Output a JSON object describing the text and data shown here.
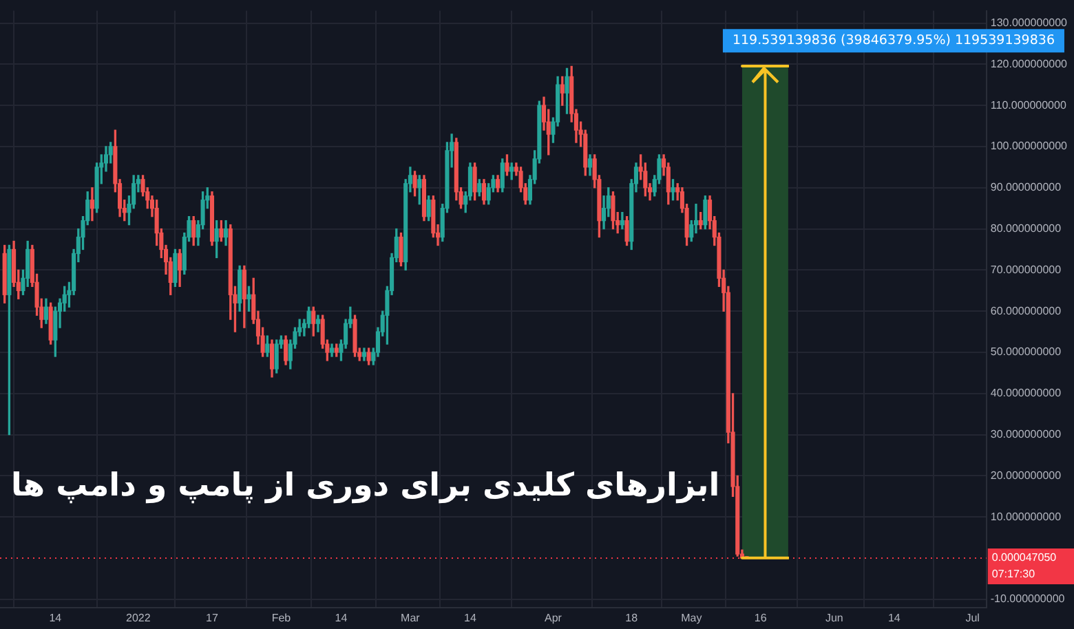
{
  "chart_data": {
    "type": "candlestick",
    "title": "ابزارهای کلیدی برای دوری از پامپ و دامپ ها",
    "x": [
      "2021-12-03",
      "2021-12-04",
      "2021-12-05",
      "2021-12-06",
      "2021-12-07",
      "2021-12-08",
      "2021-12-09",
      "2021-12-10",
      "2021-12-11",
      "2021-12-12",
      "2021-12-13",
      "2021-12-14",
      "2021-12-15",
      "2021-12-16",
      "2021-12-17",
      "2021-12-18",
      "2021-12-19",
      "2021-12-20",
      "2021-12-21",
      "2021-12-22",
      "2021-12-23",
      "2021-12-24",
      "2021-12-25",
      "2021-12-26",
      "2021-12-27",
      "2021-12-28",
      "2021-12-29",
      "2021-12-30",
      "2021-12-31",
      "2022-01-01",
      "2022-01-02",
      "2022-01-03",
      "2022-01-04",
      "2022-01-05",
      "2022-01-06",
      "2022-01-07",
      "2022-01-08",
      "2022-01-09",
      "2022-01-10",
      "2022-01-11",
      "2022-01-12",
      "2022-01-13",
      "2022-01-14",
      "2022-01-15",
      "2022-01-16",
      "2022-01-17",
      "2022-01-18",
      "2022-01-19",
      "2022-01-20",
      "2022-01-21",
      "2022-01-22",
      "2022-01-23",
      "2022-01-24",
      "2022-01-25",
      "2022-01-26",
      "2022-01-27",
      "2022-01-28",
      "2022-01-29",
      "2022-01-30",
      "2022-01-31",
      "2022-02-01",
      "2022-02-02",
      "2022-02-03",
      "2022-02-04",
      "2022-02-05",
      "2022-02-06",
      "2022-02-07",
      "2022-02-08",
      "2022-02-09",
      "2022-02-10",
      "2022-02-11",
      "2022-02-12",
      "2022-02-13",
      "2022-02-14",
      "2022-02-15",
      "2022-02-16",
      "2022-02-17",
      "2022-02-18",
      "2022-02-19",
      "2022-02-20",
      "2022-02-21",
      "2022-02-22",
      "2022-02-23",
      "2022-02-24",
      "2022-02-25",
      "2022-02-26",
      "2022-02-27",
      "2022-02-28",
      "2022-03-01",
      "2022-03-02",
      "2022-03-03",
      "2022-03-04",
      "2022-03-05",
      "2022-03-06",
      "2022-03-07",
      "2022-03-08",
      "2022-03-09",
      "2022-03-10",
      "2022-03-11",
      "2022-03-12",
      "2022-03-13",
      "2022-03-14",
      "2022-03-15",
      "2022-03-16",
      "2022-03-17",
      "2022-03-18",
      "2022-03-19",
      "2022-03-20",
      "2022-03-21",
      "2022-03-22",
      "2022-03-23",
      "2022-03-24",
      "2022-03-25",
      "2022-03-26",
      "2022-03-27",
      "2022-03-28",
      "2022-03-29",
      "2022-03-30",
      "2022-03-31",
      "2022-04-01",
      "2022-04-02",
      "2022-04-03",
      "2022-04-04",
      "2022-04-05",
      "2022-04-06",
      "2022-04-07",
      "2022-04-08",
      "2022-04-09",
      "2022-04-10",
      "2022-04-11",
      "2022-04-12",
      "2022-04-13",
      "2022-04-14",
      "2022-04-15",
      "2022-04-16",
      "2022-04-17",
      "2022-04-18",
      "2022-04-19",
      "2022-04-20",
      "2022-04-21",
      "2022-04-22",
      "2022-04-23",
      "2022-04-24",
      "2022-04-25",
      "2022-04-26",
      "2022-04-27",
      "2022-04-28",
      "2022-04-29",
      "2022-04-30",
      "2022-05-01",
      "2022-05-02",
      "2022-05-03",
      "2022-05-04",
      "2022-05-05",
      "2022-05-06",
      "2022-05-07",
      "2022-05-08",
      "2022-05-09",
      "2022-05-10",
      "2022-05-11",
      "2022-05-12",
      "2022-05-13"
    ],
    "ohlc": [
      [
        74,
        76,
        62,
        64
      ],
      [
        64,
        76,
        30,
        75
      ],
      [
        75,
        77,
        66,
        67
      ],
      [
        67,
        70,
        63,
        65
      ],
      [
        65,
        70,
        64,
        68
      ],
      [
        68,
        77,
        66,
        75
      ],
      [
        75,
        76,
        66,
        67
      ],
      [
        67,
        69,
        59,
        61
      ],
      [
        61,
        63,
        56,
        58
      ],
      [
        58,
        63,
        57,
        61
      ],
      [
        61,
        62,
        52,
        53
      ],
      [
        53,
        61,
        49,
        60
      ],
      [
        60,
        63,
        56,
        62
      ],
      [
        62,
        66,
        60,
        64
      ],
      [
        64,
        67,
        61,
        65
      ],
      [
        65,
        75,
        64,
        74
      ],
      [
        74,
        80,
        72,
        78
      ],
      [
        78,
        83,
        75,
        82
      ],
      [
        82,
        89,
        81,
        87
      ],
      [
        87,
        90,
        82,
        85
      ],
      [
        85,
        96,
        84,
        95
      ],
      [
        95,
        98,
        91,
        96
      ],
      [
        96,
        100,
        94,
        98
      ],
      [
        98,
        101,
        96,
        100
      ],
      [
        100,
        104,
        89,
        91
      ],
      [
        91,
        92,
        83,
        85
      ],
      [
        85,
        87,
        82,
        84
      ],
      [
        84,
        88,
        81,
        86
      ],
      [
        86,
        93,
        85,
        91
      ],
      [
        91,
        93,
        89,
        92
      ],
      [
        92,
        93,
        88,
        89
      ],
      [
        89,
        90,
        85,
        87
      ],
      [
        87,
        88,
        83,
        85
      ],
      [
        85,
        87,
        76,
        79
      ],
      [
        79,
        80,
        73,
        75
      ],
      [
        75,
        76,
        69,
        72
      ],
      [
        72,
        73,
        64,
        67
      ],
      [
        67,
        75,
        66,
        74
      ],
      [
        74,
        75,
        66,
        70
      ],
      [
        70,
        79,
        69,
        78
      ],
      [
        78,
        83,
        77,
        82
      ],
      [
        82,
        83,
        76,
        78
      ],
      [
        78,
        82,
        76,
        81
      ],
      [
        81,
        89,
        80,
        87
      ],
      [
        87,
        90,
        85,
        88
      ],
      [
        88,
        89,
        76,
        77
      ],
      [
        77,
        82,
        73,
        80
      ],
      [
        80,
        82,
        77,
        78
      ],
      [
        78,
        82,
        76,
        80
      ],
      [
        80,
        81,
        58,
        64
      ],
      [
        64,
        66,
        55,
        62
      ],
      [
        62,
        71,
        60,
        70
      ],
      [
        70,
        71,
        56,
        63
      ],
      [
        63,
        66,
        60,
        64
      ],
      [
        64,
        68,
        57,
        58
      ],
      [
        58,
        60,
        52,
        54
      ],
      [
        54,
        56,
        49,
        50
      ],
      [
        50,
        54,
        49,
        52
      ],
      [
        52,
        53,
        44,
        46
      ],
      [
        46,
        53,
        45,
        52
      ],
      [
        52,
        54,
        51,
        53
      ],
      [
        53,
        54,
        47,
        48
      ],
      [
        48,
        53,
        46,
        52
      ],
      [
        52,
        56,
        51,
        55
      ],
      [
        55,
        58,
        54,
        56
      ],
      [
        56,
        58,
        54,
        57
      ],
      [
        57,
        61,
        56,
        60
      ],
      [
        60,
        61,
        54,
        57
      ],
      [
        57,
        59,
        55,
        58
      ],
      [
        58,
        59,
        51,
        52
      ],
      [
        52,
        53,
        48,
        50
      ],
      [
        50,
        52,
        49,
        51
      ],
      [
        51,
        52,
        49,
        50
      ],
      [
        50,
        53,
        48,
        52
      ],
      [
        52,
        58,
        51,
        57
      ],
      [
        57,
        61,
        56,
        58
      ],
      [
        58,
        59,
        49,
        50
      ],
      [
        50,
        51,
        48,
        49
      ],
      [
        49,
        51,
        48,
        50
      ],
      [
        50,
        51,
        47,
        48
      ],
      [
        48,
        51,
        47,
        50
      ],
      [
        50,
        56,
        49,
        55
      ],
      [
        55,
        60,
        54,
        59
      ],
      [
        59,
        66,
        52,
        65
      ],
      [
        65,
        74,
        64,
        73
      ],
      [
        73,
        80,
        72,
        78
      ],
      [
        78,
        79,
        71,
        72
      ],
      [
        72,
        92,
        70,
        91
      ],
      [
        91,
        95,
        89,
        93
      ],
      [
        93,
        94,
        88,
        90
      ],
      [
        90,
        93,
        86,
        92
      ],
      [
        92,
        93,
        82,
        83
      ],
      [
        83,
        88,
        82,
        87
      ],
      [
        87,
        88,
        78,
        79
      ],
      [
        79,
        81,
        76,
        78
      ],
      [
        78,
        86,
        77,
        85
      ],
      [
        85,
        101,
        84,
        99
      ],
      [
        99,
        103,
        95,
        101
      ],
      [
        101,
        102,
        87,
        89
      ],
      [
        89,
        90,
        85,
        86
      ],
      [
        86,
        89,
        84,
        88
      ],
      [
        88,
        96,
        87,
        95
      ],
      [
        95,
        96,
        87,
        89
      ],
      [
        89,
        92,
        88,
        91
      ],
      [
        91,
        92,
        86,
        87
      ],
      [
        87,
        91,
        86,
        90
      ],
      [
        90,
        93,
        89,
        92
      ],
      [
        92,
        93,
        89,
        90
      ],
      [
        90,
        97,
        89,
        96
      ],
      [
        96,
        98,
        93,
        94
      ],
      [
        94,
        96,
        92,
        95
      ],
      [
        95,
        96,
        93,
        94
      ],
      [
        94,
        95,
        89,
        90
      ],
      [
        90,
        91,
        86,
        87
      ],
      [
        87,
        93,
        86,
        92
      ],
      [
        92,
        99,
        91,
        97
      ],
      [
        97,
        111,
        96,
        110
      ],
      [
        110,
        112,
        104,
        106
      ],
      [
        106,
        109,
        98,
        103
      ],
      [
        103,
        107,
        101,
        106
      ],
      [
        106,
        117,
        105,
        115
      ],
      [
        115,
        117,
        110,
        113
      ],
      [
        113,
        119,
        108,
        117
      ],
      [
        117,
        119.5,
        106,
        108
      ],
      [
        108,
        109,
        101,
        104
      ],
      [
        104,
        106,
        100,
        103
      ],
      [
        103,
        104,
        93,
        95
      ],
      [
        95,
        98,
        93,
        97
      ],
      [
        97,
        98,
        90,
        92
      ],
      [
        92,
        93,
        78,
        82
      ],
      [
        82,
        88,
        80,
        85
      ],
      [
        85,
        90,
        83,
        88
      ],
      [
        88,
        89,
        80,
        82
      ],
      [
        82,
        84,
        79,
        81
      ],
      [
        81,
        84,
        80,
        82
      ],
      [
        82,
        83,
        76,
        77
      ],
      [
        77,
        92,
        75,
        91
      ],
      [
        91,
        96,
        89,
        95
      ],
      [
        95,
        98,
        92,
        94
      ],
      [
        94,
        96,
        88,
        90
      ],
      [
        90,
        91,
        87,
        89
      ],
      [
        89,
        93,
        88,
        92
      ],
      [
        92,
        98,
        91,
        97
      ],
      [
        97,
        98,
        93,
        95
      ],
      [
        95,
        96,
        86,
        89
      ],
      [
        89,
        92,
        87,
        90
      ],
      [
        90,
        91,
        87,
        89
      ],
      [
        89,
        90,
        84,
        85
      ],
      [
        85,
        86,
        76,
        78
      ],
      [
        78,
        82,
        77,
        81
      ],
      [
        81,
        86,
        79,
        82
      ],
      [
        82,
        84,
        80,
        81
      ],
      [
        81,
        88,
        80,
        87
      ],
      [
        87,
        88,
        80,
        82
      ],
      [
        82,
        83,
        76,
        78
      ],
      [
        78,
        79,
        66,
        68
      ],
      [
        68,
        70,
        60,
        64.5
      ],
      [
        64.5,
        66,
        28,
        30.6
      ],
      [
        30.6,
        40,
        15,
        17.4
      ],
      [
        17.4,
        20,
        0.5,
        1
      ],
      [
        1,
        2,
        0.01,
        0.02
      ],
      [
        0.02,
        0.03,
        3e-05,
        4.705e-05
      ]
    ],
    "colors": [
      "#ef5350",
      "#26a69a",
      "#ef5350",
      "#ef5350",
      "#26a69a",
      "#26a69a",
      "#ef5350",
      "#ef5350",
      "#ef5350",
      "#26a69a",
      "#ef5350",
      "#26a69a",
      "#26a69a",
      "#26a69a",
      "#26a69a",
      "#26a69a",
      "#26a69a",
      "#26a69a",
      "#26a69a",
      "#ef5350",
      "#26a69a",
      "#26a69a",
      "#26a69a",
      "#26a69a",
      "#ef5350",
      "#ef5350",
      "#ef5350",
      "#26a69a",
      "#26a69a",
      "#26a69a",
      "#ef5350",
      "#ef5350",
      "#ef5350",
      "#ef5350",
      "#ef5350",
      "#ef5350",
      "#ef5350",
      "#26a69a",
      "#ef5350",
      "#26a69a",
      "#26a69a",
      "#ef5350",
      "#26a69a",
      "#26a69a",
      "#26a69a",
      "#ef5350",
      "#26a69a",
      "#ef5350",
      "#26a69a",
      "#ef5350",
      "#ef5350",
      "#26a69a",
      "#ef5350",
      "#26a69a",
      "#ef5350",
      "#ef5350",
      "#ef5350",
      "#26a69a",
      "#ef5350",
      "#26a69a",
      "#26a69a",
      "#ef5350",
      "#26a69a",
      "#26a69a",
      "#26a69a",
      "#26a69a",
      "#26a69a",
      "#ef5350",
      "#26a69a",
      "#ef5350",
      "#ef5350",
      "#26a69a",
      "#ef5350",
      "#26a69a",
      "#26a69a",
      "#26a69a",
      "#ef5350",
      "#ef5350",
      "#26a69a",
      "#ef5350",
      "#26a69a",
      "#26a69a",
      "#26a69a",
      "#26a69a",
      "#26a69a",
      "#26a69a",
      "#ef5350",
      "#26a69a",
      "#26a69a",
      "#ef5350",
      "#26a69a",
      "#ef5350",
      "#26a69a",
      "#ef5350",
      "#ef5350",
      "#26a69a",
      "#26a69a",
      "#26a69a",
      "#ef5350",
      "#ef5350",
      "#26a69a",
      "#26a69a",
      "#ef5350",
      "#26a69a",
      "#ef5350",
      "#26a69a",
      "#26a69a",
      "#ef5350",
      "#26a69a",
      "#ef5350",
      "#26a69a",
      "#ef5350",
      "#ef5350",
      "#ef5350",
      "#26a69a",
      "#26a69a",
      "#26a69a",
      "#ef5350",
      "#ef5350",
      "#26a69a",
      "#26a69a",
      "#ef5350",
      "#26a69a",
      "#ef5350",
      "#ef5350",
      "#ef5350",
      "#ef5350",
      "#26a69a",
      "#ef5350",
      "#ef5350",
      "#26a69a",
      "#26a69a",
      "#ef5350",
      "#ef5350",
      "#26a69a",
      "#ef5350",
      "#26a69a",
      "#26a69a",
      "#ef5350",
      "#ef5350",
      "#ef5350",
      "#26a69a",
      "#26a69a",
      "#ef5350",
      "#ef5350",
      "#26a69a",
      "#ef5350",
      "#ef5350",
      "#ef5350",
      "#26a69a",
      "#26a69a",
      "#ef5350",
      "#26a69a",
      "#ef5350",
      "#ef5350",
      "#ef5350",
      "#ef5350",
      "#ef5350",
      "#ef5350",
      "#ef5350",
      "#ef5350",
      "#ef5350"
    ],
    "xlim": [
      "2021-12-02",
      "2022-07-04"
    ],
    "xticks": [
      {
        "value": "2021-12-14",
        "label": "14"
      },
      {
        "value": "2022-01-01",
        "label": "2022"
      },
      {
        "value": "2022-01-17",
        "label": "17"
      },
      {
        "value": "2022-02-01",
        "label": "Feb"
      },
      {
        "value": "2022-02-14",
        "label": "14"
      },
      {
        "value": "2022-03-01",
        "label": "Mar"
      },
      {
        "value": "2022-03-14",
        "label": "14"
      },
      {
        "value": "2022-04-01",
        "label": "Apr"
      },
      {
        "value": "2022-04-18",
        "label": "18"
      },
      {
        "value": "2022-05-01",
        "label": "May"
      },
      {
        "value": "2022-05-16",
        "label": "16"
      },
      {
        "value": "2022-06-01",
        "label": "Jun"
      },
      {
        "value": "2022-06-14",
        "label": "14"
      },
      {
        "value": "2022-07-01",
        "label": "Jul"
      }
    ],
    "ylim": [
      -12,
      133
    ],
    "yticks": [
      {
        "value": -10,
        "label": "-10.000000000"
      },
      {
        "value": 10,
        "label": "10.000000000"
      },
      {
        "value": 20,
        "label": "20.000000000"
      },
      {
        "value": 30,
        "label": "30.000000000"
      },
      {
        "value": 40,
        "label": "40.000000000"
      },
      {
        "value": 50,
        "label": "50.000000000"
      },
      {
        "value": 60,
        "label": "60.000000000"
      },
      {
        "value": 70,
        "label": "70.000000000"
      },
      {
        "value": 80,
        "label": "80.000000000"
      },
      {
        "value": 90,
        "label": "90.000000000"
      },
      {
        "value": 100,
        "label": "100.000000000"
      },
      {
        "value": 110,
        "label": "110.000000000"
      },
      {
        "value": 120,
        "label": "120.000000000"
      },
      {
        "value": 130,
        "label": "130.000000000"
      }
    ],
    "grid": true,
    "legend": false,
    "ref_lines": [
      {
        "axis": "y",
        "value": 4.705e-05,
        "label": "0.000047050",
        "color": "#f23645",
        "line_style": "dotted"
      }
    ],
    "bands": [
      {
        "axis": "x",
        "from": "2022-05-12",
        "to": "2022-05-22",
        "color": "#1f4a2c"
      }
    ],
    "annotations": [
      "119.539139836 (39846379.95%) 119539139836",
      "07:17:30"
    ]
  }
}
